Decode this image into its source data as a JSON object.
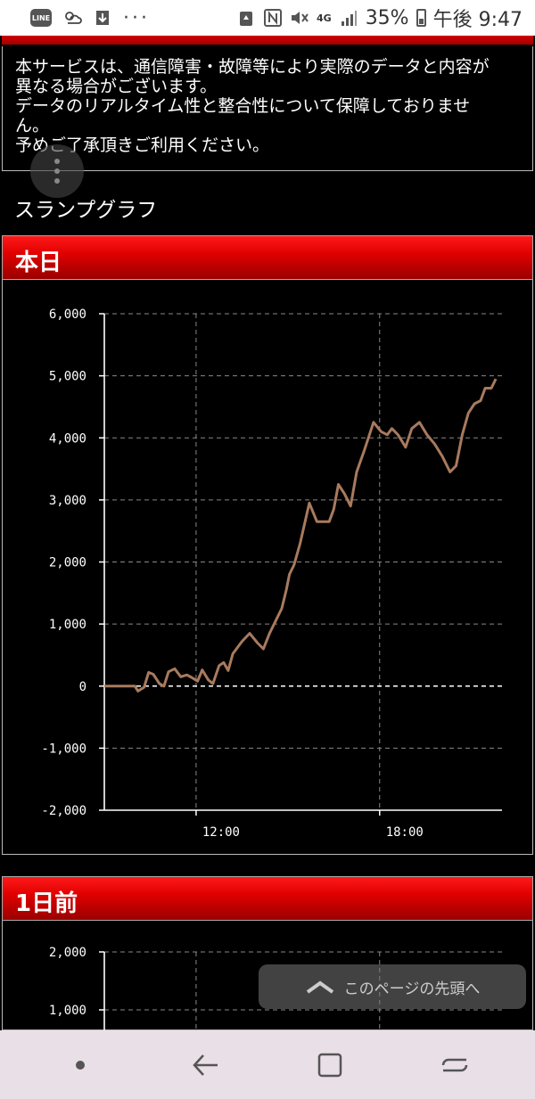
{
  "status_bar": {
    "left_icons": [
      "line-icon",
      "weather-icon",
      "download-icon",
      "more-icon"
    ],
    "line_label": "LINE",
    "network": "4G",
    "battery": "35%",
    "time": "午後 9:47"
  },
  "notice": {
    "lines": [
      "本サービスは、通信障害・故障等により実際のデータと内容が",
      "異なる場合がございます。",
      "データのリアルタイム性と整合性について保障しておりませ",
      "ん。",
      "予めご了承頂きご利用ください。"
    ]
  },
  "section_title": "スランプグラフ",
  "panels": [
    {
      "title": "本日"
    },
    {
      "title": "1日前"
    }
  ],
  "chart_data": [
    {
      "type": "line",
      "title": "本日",
      "xlabel": "",
      "ylabel": "",
      "ylim": [
        -2000,
        6000
      ],
      "yticks": [
        "6,000",
        "5,000",
        "4,000",
        "3,000",
        "2,000",
        "1,000",
        "0",
        "-1,000",
        "-2,000"
      ],
      "ytick_values": [
        6000,
        5000,
        4000,
        3000,
        2000,
        1000,
        0,
        -1000,
        -2000
      ],
      "xticks": [
        "12:00",
        "18:00"
      ],
      "xtick_values": [
        12,
        18
      ],
      "xlim": [
        9,
        22
      ],
      "grid": true,
      "series": [
        {
          "color": "#a87a5e",
          "x": [
            9.0,
            9.5,
            10.0,
            10.1,
            10.3,
            10.45,
            10.6,
            10.8,
            10.95,
            11.1,
            11.3,
            11.5,
            11.7,
            11.85,
            12.05,
            12.2,
            12.4,
            12.55,
            12.75,
            12.9,
            13.05,
            13.2,
            13.35,
            13.5,
            13.75,
            14.0,
            14.2,
            14.4,
            14.6,
            14.8,
            14.95,
            15.05,
            15.2,
            15.4,
            15.7,
            15.95,
            16.2,
            16.35,
            16.5,
            16.65,
            16.85,
            17.05,
            17.25,
            17.5,
            17.8,
            18.05,
            18.25,
            18.4,
            18.6,
            18.85,
            19.05,
            19.3,
            19.55,
            19.8,
            20.05,
            20.3,
            20.5,
            20.7,
            20.9,
            21.1,
            21.3,
            21.45,
            21.65,
            21.8
          ],
          "y": [
            0,
            0,
            0,
            -80,
            -20,
            220,
            190,
            40,
            0,
            230,
            280,
            150,
            180,
            140,
            80,
            260,
            100,
            40,
            330,
            380,
            250,
            520,
            620,
            720,
            850,
            700,
            600,
            850,
            1050,
            1250,
            1550,
            1800,
            1950,
            2300,
            2950,
            2650,
            2650,
            2650,
            2850,
            3250,
            3100,
            2900,
            3450,
            3800,
            4250,
            4100,
            4050,
            4150,
            4050,
            3850,
            4150,
            4250,
            4050,
            3900,
            3700,
            3450,
            3550,
            4050,
            4400,
            4550,
            4600,
            4800,
            4800,
            4950
          ]
        }
      ]
    },
    {
      "type": "line",
      "title": "1日前",
      "ylim": [
        -2000,
        2000
      ],
      "yticks": [
        "2,000",
        "1,000"
      ],
      "ytick_values": [
        2000,
        1000
      ],
      "xlim": [
        9,
        22
      ],
      "grid": true,
      "series": []
    }
  ],
  "back_to_top": {
    "label": "このページの先頭へ"
  },
  "nav": {
    "buttons": [
      "recent-dot-icon",
      "back-icon",
      "home-icon",
      "recents-icon"
    ]
  }
}
